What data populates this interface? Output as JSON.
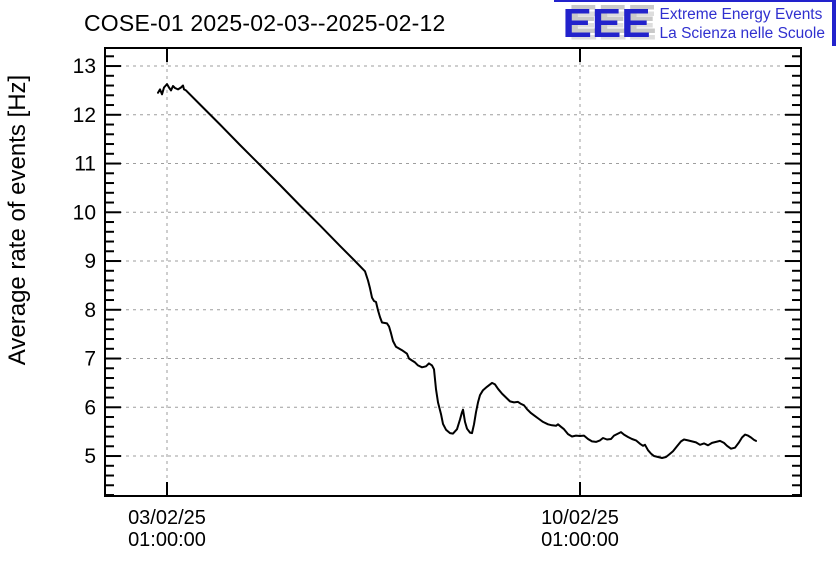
{
  "header": {
    "logo": {
      "acronym": "EEE",
      "line1": "Extreme Energy Events",
      "line2": "La Scienza nelle Scuole",
      "blue": "#2222cc",
      "text_blue": "#3030cf",
      "shadow_gray": "#c9c9c9"
    }
  },
  "chart_data": {
    "type": "line",
    "title": "COSE-01 2025-02-03--2025-02-12",
    "ylabel": "Average rate of events [Hz]",
    "xlabel": "",
    "line_color": "#000000",
    "grid_color": "#9e9e9e",
    "frame_color": "#000000",
    "grid": true,
    "legend": "none",
    "ylim": [
      4.18,
      13.37
    ],
    "y_major_ticks": [
      5,
      6,
      7,
      8,
      9,
      10,
      11,
      12,
      13
    ],
    "y_minor_step": 0.2,
    "xlim_days": [
      -1.051,
      10.746
    ],
    "x_major_ticks_days": [
      0,
      7
    ],
    "x_tick_labels": [
      [
        "03/02/25",
        "01:00:00"
      ],
      [
        "10/02/25",
        "01:00:00"
      ]
    ],
    "x_time_note": "t is days since 2025-02-03 01:00:00",
    "series": [
      {
        "name": "average-rate",
        "points": [
          [
            -0.153,
            12.45
          ],
          [
            -0.119,
            12.52
          ],
          [
            -0.085,
            12.42
          ],
          [
            -0.051,
            12.56
          ],
          [
            0.0,
            12.63
          ],
          [
            0.034,
            12.56
          ],
          [
            0.068,
            12.5
          ],
          [
            0.102,
            12.59
          ],
          [
            0.136,
            12.55
          ],
          [
            0.186,
            12.52
          ],
          [
            0.237,
            12.56
          ],
          [
            0.271,
            12.6
          ],
          [
            0.288,
            12.52
          ],
          [
            0.322,
            12.5
          ],
          [
            0.559,
            12.21
          ],
          [
            0.898,
            11.8
          ],
          [
            1.237,
            11.38
          ],
          [
            1.576,
            10.97
          ],
          [
            1.915,
            10.56
          ],
          [
            2.254,
            10.14
          ],
          [
            2.593,
            9.73
          ],
          [
            2.932,
            9.31
          ],
          [
            3.186,
            9.0
          ],
          [
            3.356,
            8.79
          ],
          [
            3.407,
            8.6
          ],
          [
            3.441,
            8.44
          ],
          [
            3.475,
            8.25
          ],
          [
            3.508,
            8.18
          ],
          [
            3.542,
            8.16
          ],
          [
            3.576,
            7.99
          ],
          [
            3.61,
            7.85
          ],
          [
            3.644,
            7.74
          ],
          [
            3.729,
            7.72
          ],
          [
            3.763,
            7.66
          ],
          [
            3.797,
            7.52
          ],
          [
            3.831,
            7.36
          ],
          [
            3.881,
            7.24
          ],
          [
            3.983,
            7.17
          ],
          [
            4.068,
            7.1
          ],
          [
            4.102,
            7.0
          ],
          [
            4.153,
            6.96
          ],
          [
            4.203,
            6.92
          ],
          [
            4.254,
            6.86
          ],
          [
            4.322,
            6.82
          ],
          [
            4.39,
            6.84
          ],
          [
            4.441,
            6.9
          ],
          [
            4.492,
            6.86
          ],
          [
            4.525,
            6.78
          ],
          [
            4.559,
            6.37
          ],
          [
            4.593,
            6.1
          ],
          [
            4.644,
            5.86
          ],
          [
            4.678,
            5.66
          ],
          [
            4.729,
            5.54
          ],
          [
            4.797,
            5.47
          ],
          [
            4.847,
            5.46
          ],
          [
            4.915,
            5.55
          ],
          [
            4.966,
            5.75
          ],
          [
            5.0,
            5.9
          ],
          [
            5.017,
            5.95
          ],
          [
            5.051,
            5.7
          ],
          [
            5.085,
            5.56
          ],
          [
            5.136,
            5.48
          ],
          [
            5.169,
            5.47
          ],
          [
            5.203,
            5.65
          ],
          [
            5.237,
            5.9
          ],
          [
            5.271,
            6.1
          ],
          [
            5.305,
            6.25
          ],
          [
            5.356,
            6.35
          ],
          [
            5.424,
            6.42
          ],
          [
            5.508,
            6.5
          ],
          [
            5.559,
            6.47
          ],
          [
            5.61,
            6.38
          ],
          [
            5.678,
            6.28
          ],
          [
            5.746,
            6.2
          ],
          [
            5.814,
            6.12
          ],
          [
            5.881,
            6.1
          ],
          [
            5.949,
            6.11
          ],
          [
            6.0,
            6.07
          ],
          [
            6.051,
            6.04
          ],
          [
            6.102,
            5.96
          ],
          [
            6.169,
            5.88
          ],
          [
            6.237,
            5.82
          ],
          [
            6.305,
            5.76
          ],
          [
            6.373,
            5.7
          ],
          [
            6.458,
            5.65
          ],
          [
            6.525,
            5.63
          ],
          [
            6.593,
            5.62
          ],
          [
            6.627,
            5.65
          ],
          [
            6.678,
            5.6
          ],
          [
            6.729,
            5.55
          ],
          [
            6.797,
            5.45
          ],
          [
            6.864,
            5.4
          ],
          [
            6.932,
            5.42
          ],
          [
            7.0,
            5.41
          ],
          [
            7.068,
            5.42
          ],
          [
            7.136,
            5.35
          ],
          [
            7.203,
            5.3
          ],
          [
            7.271,
            5.29
          ],
          [
            7.339,
            5.32
          ],
          [
            7.39,
            5.37
          ],
          [
            7.458,
            5.34
          ],
          [
            7.525,
            5.35
          ],
          [
            7.576,
            5.42
          ],
          [
            7.644,
            5.46
          ],
          [
            7.695,
            5.49
          ],
          [
            7.746,
            5.44
          ],
          [
            7.814,
            5.39
          ],
          [
            7.881,
            5.35
          ],
          [
            7.949,
            5.32
          ],
          [
            8.017,
            5.25
          ],
          [
            8.068,
            5.21
          ],
          [
            8.102,
            5.23
          ],
          [
            8.153,
            5.12
          ],
          [
            8.203,
            5.05
          ],
          [
            8.254,
            5.0
          ],
          [
            8.322,
            4.98
          ],
          [
            8.39,
            4.96
          ],
          [
            8.458,
            4.98
          ],
          [
            8.508,
            5.03
          ],
          [
            8.576,
            5.1
          ],
          [
            8.644,
            5.2
          ],
          [
            8.712,
            5.3
          ],
          [
            8.763,
            5.34
          ],
          [
            8.831,
            5.32
          ],
          [
            8.898,
            5.3
          ],
          [
            8.966,
            5.28
          ],
          [
            9.034,
            5.23
          ],
          [
            9.102,
            5.26
          ],
          [
            9.169,
            5.22
          ],
          [
            9.237,
            5.27
          ],
          [
            9.305,
            5.29
          ],
          [
            9.373,
            5.31
          ],
          [
            9.441,
            5.27
          ],
          [
            9.492,
            5.21
          ],
          [
            9.559,
            5.15
          ],
          [
            9.627,
            5.17
          ],
          [
            9.695,
            5.28
          ],
          [
            9.746,
            5.38
          ],
          [
            9.797,
            5.44
          ],
          [
            9.847,
            5.42
          ],
          [
            9.898,
            5.38
          ],
          [
            9.949,
            5.33
          ],
          [
            9.983,
            5.31
          ]
        ]
      }
    ]
  }
}
